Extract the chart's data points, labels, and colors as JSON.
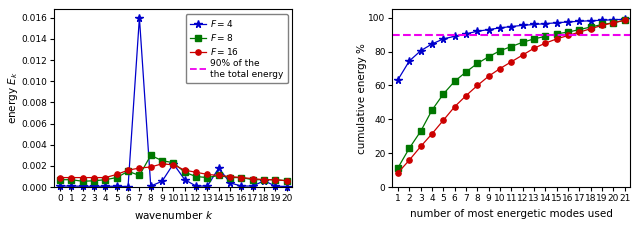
{
  "left": {
    "xlabel": "wavenumber $k$",
    "ylabel": "energy $E_k$",
    "xlim": [
      -0.5,
      20.5
    ],
    "ylim": [
      0,
      0.0168
    ],
    "yticks": [
      0,
      0.002,
      0.004,
      0.006,
      0.008,
      0.01,
      0.012,
      0.014,
      0.016
    ],
    "xticks": [
      0,
      1,
      2,
      3,
      4,
      5,
      6,
      7,
      8,
      9,
      10,
      11,
      12,
      13,
      14,
      15,
      16,
      17,
      18,
      19,
      20
    ],
    "F4": [
      0.0001,
      0.0001,
      8e-05,
      8e-05,
      8e-05,
      8e-05,
      5e-05,
      0.016,
      0.0001,
      0.00055,
      0.0022,
      0.0007,
      0.0001,
      0.0001,
      0.0018,
      0.0004,
      0.0001,
      0.0001,
      0.0006,
      0.0001,
      5e-05
    ],
    "F8": [
      0.0007,
      0.0007,
      0.00055,
      0.0006,
      0.0007,
      0.0009,
      0.0015,
      0.0011,
      0.003,
      0.0025,
      0.0023,
      0.0014,
      0.001,
      0.0009,
      0.0011,
      0.0009,
      0.0009,
      0.0007,
      0.0007,
      0.0007,
      0.0006
    ],
    "F16": [
      0.0009,
      0.0009,
      0.0009,
      0.0009,
      0.0009,
      0.0012,
      0.0016,
      0.0018,
      0.0019,
      0.0022,
      0.0021,
      0.0016,
      0.0014,
      0.0012,
      0.0011,
      0.001,
      0.0009,
      0.0008,
      0.0007,
      0.0007,
      0.0006
    ],
    "color_F4": "#0000cc",
    "color_F8": "#007700",
    "color_F16": "#cc0000",
    "color_90pct": "#ee00ee"
  },
  "right": {
    "xlabel": "number of most energetic modes used",
    "ylabel": "cumulative energy %",
    "xlim": [
      0.5,
      21.5
    ],
    "ylim": [
      0,
      105
    ],
    "yticks": [
      0,
      20,
      40,
      60,
      80,
      100
    ],
    "xticks": [
      1,
      2,
      3,
      4,
      5,
      6,
      7,
      8,
      9,
      10,
      11,
      12,
      13,
      14,
      15,
      16,
      17,
      18,
      19,
      20,
      21
    ],
    "F4": [
      63.5,
      74.5,
      80.5,
      84.5,
      87.5,
      89.0,
      90.5,
      92.0,
      93.0,
      94.0,
      94.8,
      95.5,
      96.0,
      96.5,
      97.0,
      97.5,
      97.9,
      98.2,
      98.5,
      98.8,
      99.1
    ],
    "F8": [
      11.5,
      23.0,
      33.0,
      45.5,
      55.0,
      62.5,
      68.0,
      73.0,
      77.0,
      80.5,
      83.0,
      85.5,
      87.5,
      89.0,
      90.5,
      91.5,
      93.0,
      94.5,
      96.0,
      97.0,
      98.5
    ],
    "F16": [
      8.5,
      16.0,
      24.0,
      31.5,
      39.5,
      47.5,
      54.0,
      60.0,
      65.5,
      70.0,
      74.0,
      78.0,
      82.0,
      85.0,
      87.5,
      89.5,
      91.5,
      93.5,
      95.5,
      97.0,
      98.5
    ],
    "color_F4": "#0000cc",
    "color_F8": "#007700",
    "color_F16": "#cc0000",
    "color_90pct": "#ee00ee",
    "line_90pct": 90.0
  },
  "legend": {
    "F4_label": "$F = 4$",
    "F8_label": "$F = 8$",
    "F16_label": "$F = 16$",
    "pct_label": "90% of the\nthe total energy"
  },
  "fig_width": 6.4,
  "fig_height": 2.31,
  "dpi": 100
}
